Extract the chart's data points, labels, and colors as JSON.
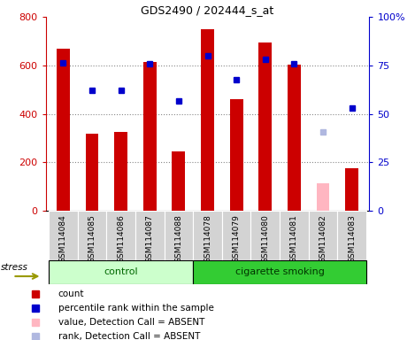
{
  "title": "GDS2490 / 202444_s_at",
  "samples": [
    "GSM114084",
    "GSM114085",
    "GSM114086",
    "GSM114087",
    "GSM114088",
    "GSM114078",
    "GSM114079",
    "GSM114080",
    "GSM114081",
    "GSM114082",
    "GSM114083"
  ],
  "red_bars": [
    670,
    320,
    325,
    615,
    245,
    750,
    462,
    695,
    605,
    0,
    175
  ],
  "blue_dots": [
    610,
    498,
    498,
    608,
    455,
    640,
    543,
    625,
    608,
    0,
    425
  ],
  "pink_bar": [
    0,
    0,
    0,
    0,
    0,
    0,
    0,
    0,
    0,
    115,
    0
  ],
  "lavender_dot": [
    0,
    0,
    0,
    0,
    0,
    0,
    0,
    0,
    0,
    325,
    0
  ],
  "absent_idx": 9,
  "ylim_left": [
    0,
    800
  ],
  "ylim_right": [
    0,
    100
  ],
  "yticks_left": [
    0,
    200,
    400,
    600,
    800
  ],
  "ytick_labels_left": [
    "0",
    "200",
    "400",
    "600",
    "800"
  ],
  "yticks_right": [
    0,
    25,
    50,
    75,
    100
  ],
  "ytick_labels_right": [
    "0",
    "25",
    "50",
    "75",
    "100%"
  ],
  "bar_color": "#cc0000",
  "dot_color": "#0000cc",
  "pink_color": "#ffb6c1",
  "lavender_color": "#b0b8e0",
  "control_bg": "#ccffcc",
  "smoking_bg": "#33cc33",
  "tick_bg": "#d3d3d3",
  "grid_color": "#888888",
  "stress_color": "#999900",
  "n_control": 5,
  "n_smoking": 6
}
